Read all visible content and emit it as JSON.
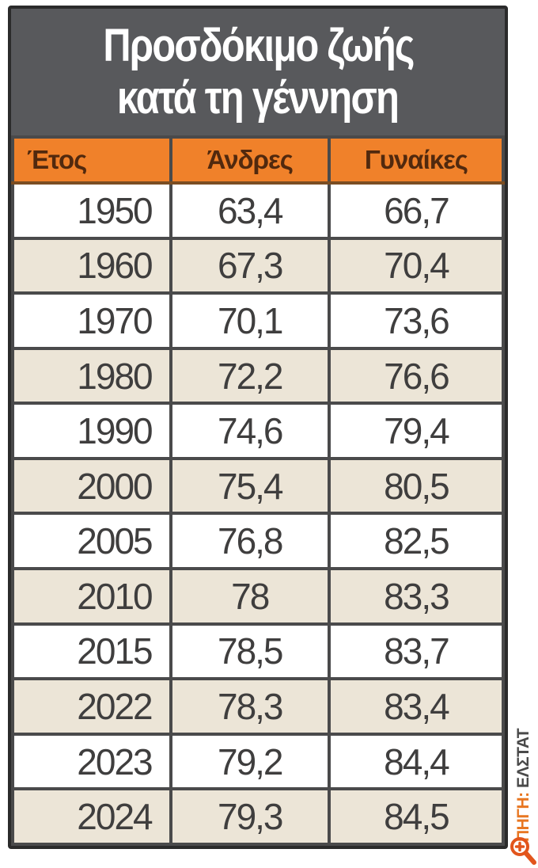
{
  "title": {
    "line1": "Προσδόκιμο ζωής",
    "line2": "κατά τη γέννηση"
  },
  "source": {
    "label": "ΠΗΓΗ:",
    "value": "ΕΛΣΤΑΤ"
  },
  "icons": {
    "zoom_icon": "magnifier-plus"
  },
  "colors": {
    "title_band_bg": "#58595c",
    "title_text": "#ffffff",
    "header_bg": "#f0812a",
    "header_text": "#51290e",
    "row_alt_bg": "#ece5d7",
    "row_bg": "#ffffff",
    "cell_border": "#4a4a4b",
    "outer_border": "#2b2b2b",
    "body_text": "#3f3e3e",
    "source_label_color": "#e87722",
    "source_value_color": "#4a4a4a",
    "zoom_icon_color": "#e2551c"
  },
  "chart_data": {
    "type": "table",
    "title": "Προσδόκιμο ζωής κατά τη γέννηση",
    "columns": [
      "Έτος",
      "Άνδρες",
      "Γυναίκες"
    ],
    "rows": [
      [
        "1950",
        "63,4",
        "66,7"
      ],
      [
        "1960",
        "67,3",
        "70,4"
      ],
      [
        "1970",
        "70,1",
        "73,6"
      ],
      [
        "1980",
        "72,2",
        "76,6"
      ],
      [
        "1990",
        "74,6",
        "79,4"
      ],
      [
        "2000",
        "75,4",
        "80,5"
      ],
      [
        "2005",
        "76,8",
        "82,5"
      ],
      [
        "2010",
        "78",
        "83,3"
      ],
      [
        "2015",
        "78,5",
        "83,7"
      ],
      [
        "2022",
        "78,3",
        "83,4"
      ],
      [
        "2023",
        "79,2",
        "84,4"
      ],
      [
        "2024",
        "79,3",
        "84,5"
      ]
    ],
    "source_label": "ΠΗΓΗ:",
    "source_value": "ΕΛΣΤΑΤ",
    "layout_hints": {
      "alternating_rows": true,
      "decimal_separator": ","
    }
  }
}
